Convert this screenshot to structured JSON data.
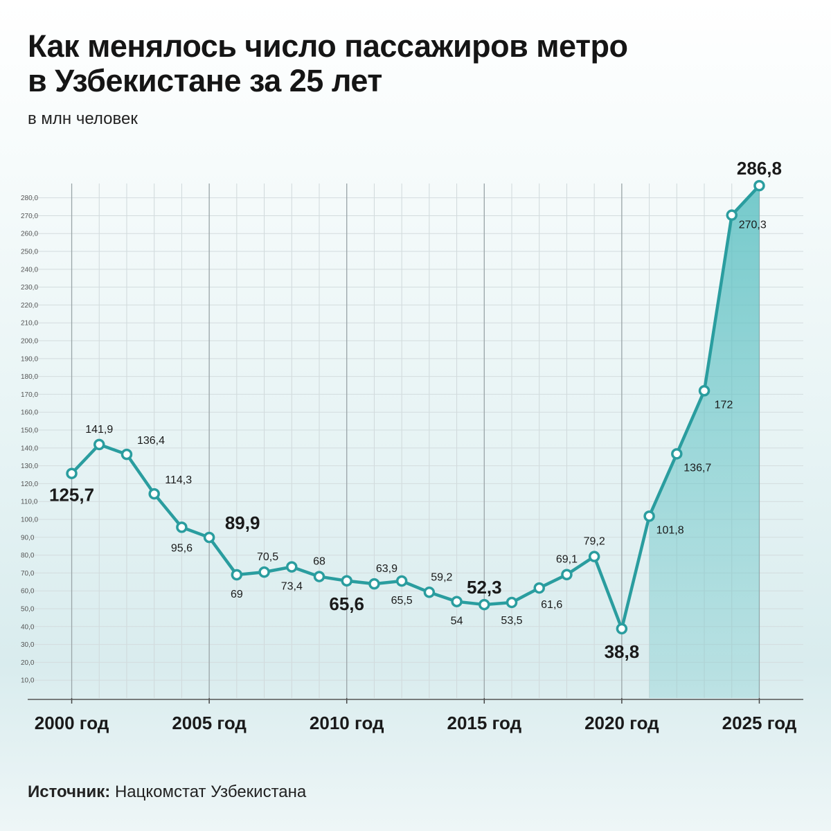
{
  "chart_data": {
    "type": "line",
    "title": "Как менялось число пассажиров метро в Узбекистане за 25 лет",
    "subtitle": "в млн человек",
    "source_label": "Источник:",
    "source": "Нацкомстат Узбекистана",
    "x": [
      2000,
      2001,
      2002,
      2003,
      2004,
      2005,
      2006,
      2007,
      2008,
      2009,
      2010,
      2011,
      2012,
      2013,
      2014,
      2015,
      2016,
      2017,
      2018,
      2019,
      2020,
      2021,
      2022,
      2023,
      2024,
      2025
    ],
    "series": [
      {
        "name": "Пассажиры метро",
        "color": "#2a9d9f",
        "values": [
          125.7,
          141.9,
          136.4,
          114.3,
          95.6,
          89.9,
          69,
          70.5,
          73.4,
          68,
          65.6,
          63.9,
          65.5,
          59.2,
          54,
          52.3,
          53.5,
          61.6,
          69.1,
          79.2,
          38.8,
          101.8,
          136.7,
          172,
          270.3,
          286.8
        ],
        "value_labels": [
          "125,7",
          "141,9",
          "136,4",
          "114,3",
          "95,6",
          "89,9",
          "69",
          "70,5",
          "73,4",
          "68",
          "65,6",
          "63,9",
          "65,5",
          "59,2",
          "54",
          "52,3",
          "53,5",
          "61,6",
          "69,1",
          "79,2",
          "38,8",
          "101,8",
          "136,7",
          "172",
          "270,3",
          "286,8"
        ]
      }
    ],
    "xlim": [
      1998.4,
      2026.6
    ],
    "xticks": [
      {
        "value": 2000,
        "label": "2000 год"
      },
      {
        "value": 2005,
        "label": "2005 год"
      },
      {
        "value": 2010,
        "label": "2010 год"
      },
      {
        "value": 2015,
        "label": "2015 год"
      },
      {
        "value": 2020,
        "label": "2020 год"
      },
      {
        "value": 2025,
        "label": "2025 год"
      }
    ],
    "ylim": [
      0,
      288
    ],
    "yticks": [
      {
        "value": 10,
        "label": "10,0"
      },
      {
        "value": 20,
        "label": "20,0"
      },
      {
        "value": 30,
        "label": "30,0"
      },
      {
        "value": 40,
        "label": "40,0"
      },
      {
        "value": 50,
        "label": "50,0"
      },
      {
        "value": 60,
        "label": "60,0"
      },
      {
        "value": 70,
        "label": "70,0"
      },
      {
        "value": 80,
        "label": "80,0"
      },
      {
        "value": 90,
        "label": "90,0"
      },
      {
        "value": 100,
        "label": "100,0"
      },
      {
        "value": 110,
        "label": "110,0"
      },
      {
        "value": 120,
        "label": "120,0"
      },
      {
        "value": 130,
        "label": "130,0"
      },
      {
        "value": 140,
        "label": "140,0"
      },
      {
        "value": 150,
        "label": "150,0"
      },
      {
        "value": 160,
        "label": "160,0"
      },
      {
        "value": 170,
        "label": "170,0"
      },
      {
        "value": 180,
        "label": "180,0"
      },
      {
        "value": 190,
        "label": "190,0"
      },
      {
        "value": 200,
        "label": "200,0"
      },
      {
        "value": 210,
        "label": "210,0"
      },
      {
        "value": 220,
        "label": "220,0"
      },
      {
        "value": 230,
        "label": "230,0"
      },
      {
        "value": 240,
        "label": "240,0"
      },
      {
        "value": 250,
        "label": "250,0"
      },
      {
        "value": 260,
        "label": "260,0"
      },
      {
        "value": 270,
        "label": "270,0"
      },
      {
        "value": 280,
        "label": "280,0"
      }
    ],
    "grid": true
  }
}
